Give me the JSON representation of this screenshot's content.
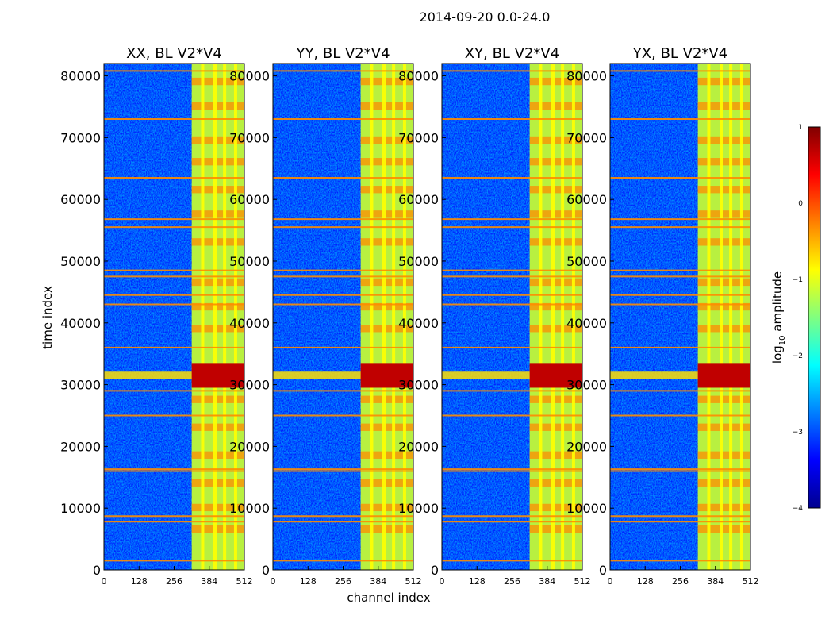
{
  "figure_title": "2014-09-20 0.0-24.0",
  "chart_data": [
    {
      "type": "heatmap",
      "title": "XX, BL V2*V4",
      "xlabel": "channel index",
      "ylabel": "time index",
      "xlim": [
        0,
        512
      ],
      "ylim": [
        0,
        82000
      ],
      "xticks": [
        0,
        128,
        256,
        384,
        512
      ],
      "yticks": [
        0,
        10000,
        20000,
        30000,
        40000,
        50000,
        60000,
        70000,
        80000
      ],
      "active_channels": [
        320,
        512
      ],
      "bright_columns": [
        360,
        405,
        440,
        480
      ],
      "hot_time_band": [
        29500,
        33500
      ]
    },
    {
      "type": "heatmap",
      "title": "YY, BL V2*V4",
      "xlabel": "channel index",
      "ylabel": "time index",
      "xlim": [
        0,
        512
      ],
      "ylim": [
        0,
        82000
      ],
      "xticks": [
        0,
        128,
        256,
        384,
        512
      ],
      "yticks": [
        0,
        10000,
        20000,
        30000,
        40000,
        50000,
        60000,
        70000,
        80000
      ],
      "active_channels": [
        320,
        512
      ],
      "bright_columns": [
        360,
        405,
        440,
        480
      ],
      "hot_time_band": [
        29500,
        33500
      ]
    },
    {
      "type": "heatmap",
      "title": "XY, BL V2*V4",
      "xlabel": "channel index",
      "ylabel": "time index",
      "xlim": [
        0,
        512
      ],
      "ylim": [
        0,
        82000
      ],
      "xticks": [
        0,
        128,
        256,
        384,
        512
      ],
      "yticks": [
        0,
        10000,
        20000,
        30000,
        40000,
        50000,
        60000,
        70000,
        80000
      ],
      "active_channels": [
        320,
        512
      ],
      "bright_columns": [
        360,
        405,
        440,
        480
      ],
      "hot_time_band": [
        29500,
        33500
      ]
    },
    {
      "type": "heatmap",
      "title": "YX, BL V2*V4",
      "xlabel": "channel index",
      "ylabel": "time index",
      "xlim": [
        0,
        512
      ],
      "ylim": [
        0,
        82000
      ],
      "xticks": [
        0,
        128,
        256,
        384,
        512
      ],
      "yticks": [
        0,
        10000,
        20000,
        30000,
        40000,
        50000,
        60000,
        70000,
        80000
      ],
      "active_channels": [
        320,
        512
      ],
      "bright_columns": [
        360,
        405,
        440,
        480
      ],
      "hot_time_band": [
        29500,
        33500
      ]
    }
  ],
  "colorbar": {
    "label": "log10 amplitude",
    "label_main": "log",
    "label_sub": "10",
    "label_rest": " amplitude",
    "range": [
      -4,
      1
    ],
    "ticks": [
      "1",
      "0",
      "−1",
      "−2",
      "−3",
      "−4"
    ],
    "tick_values": [
      1,
      0,
      -1,
      -2,
      -3,
      -4
    ],
    "colormap": "jet"
  },
  "colors": {
    "low": "#0020ff",
    "mid": "#ffff00",
    "high": "#ff2000",
    "line": "#ff8c00"
  }
}
